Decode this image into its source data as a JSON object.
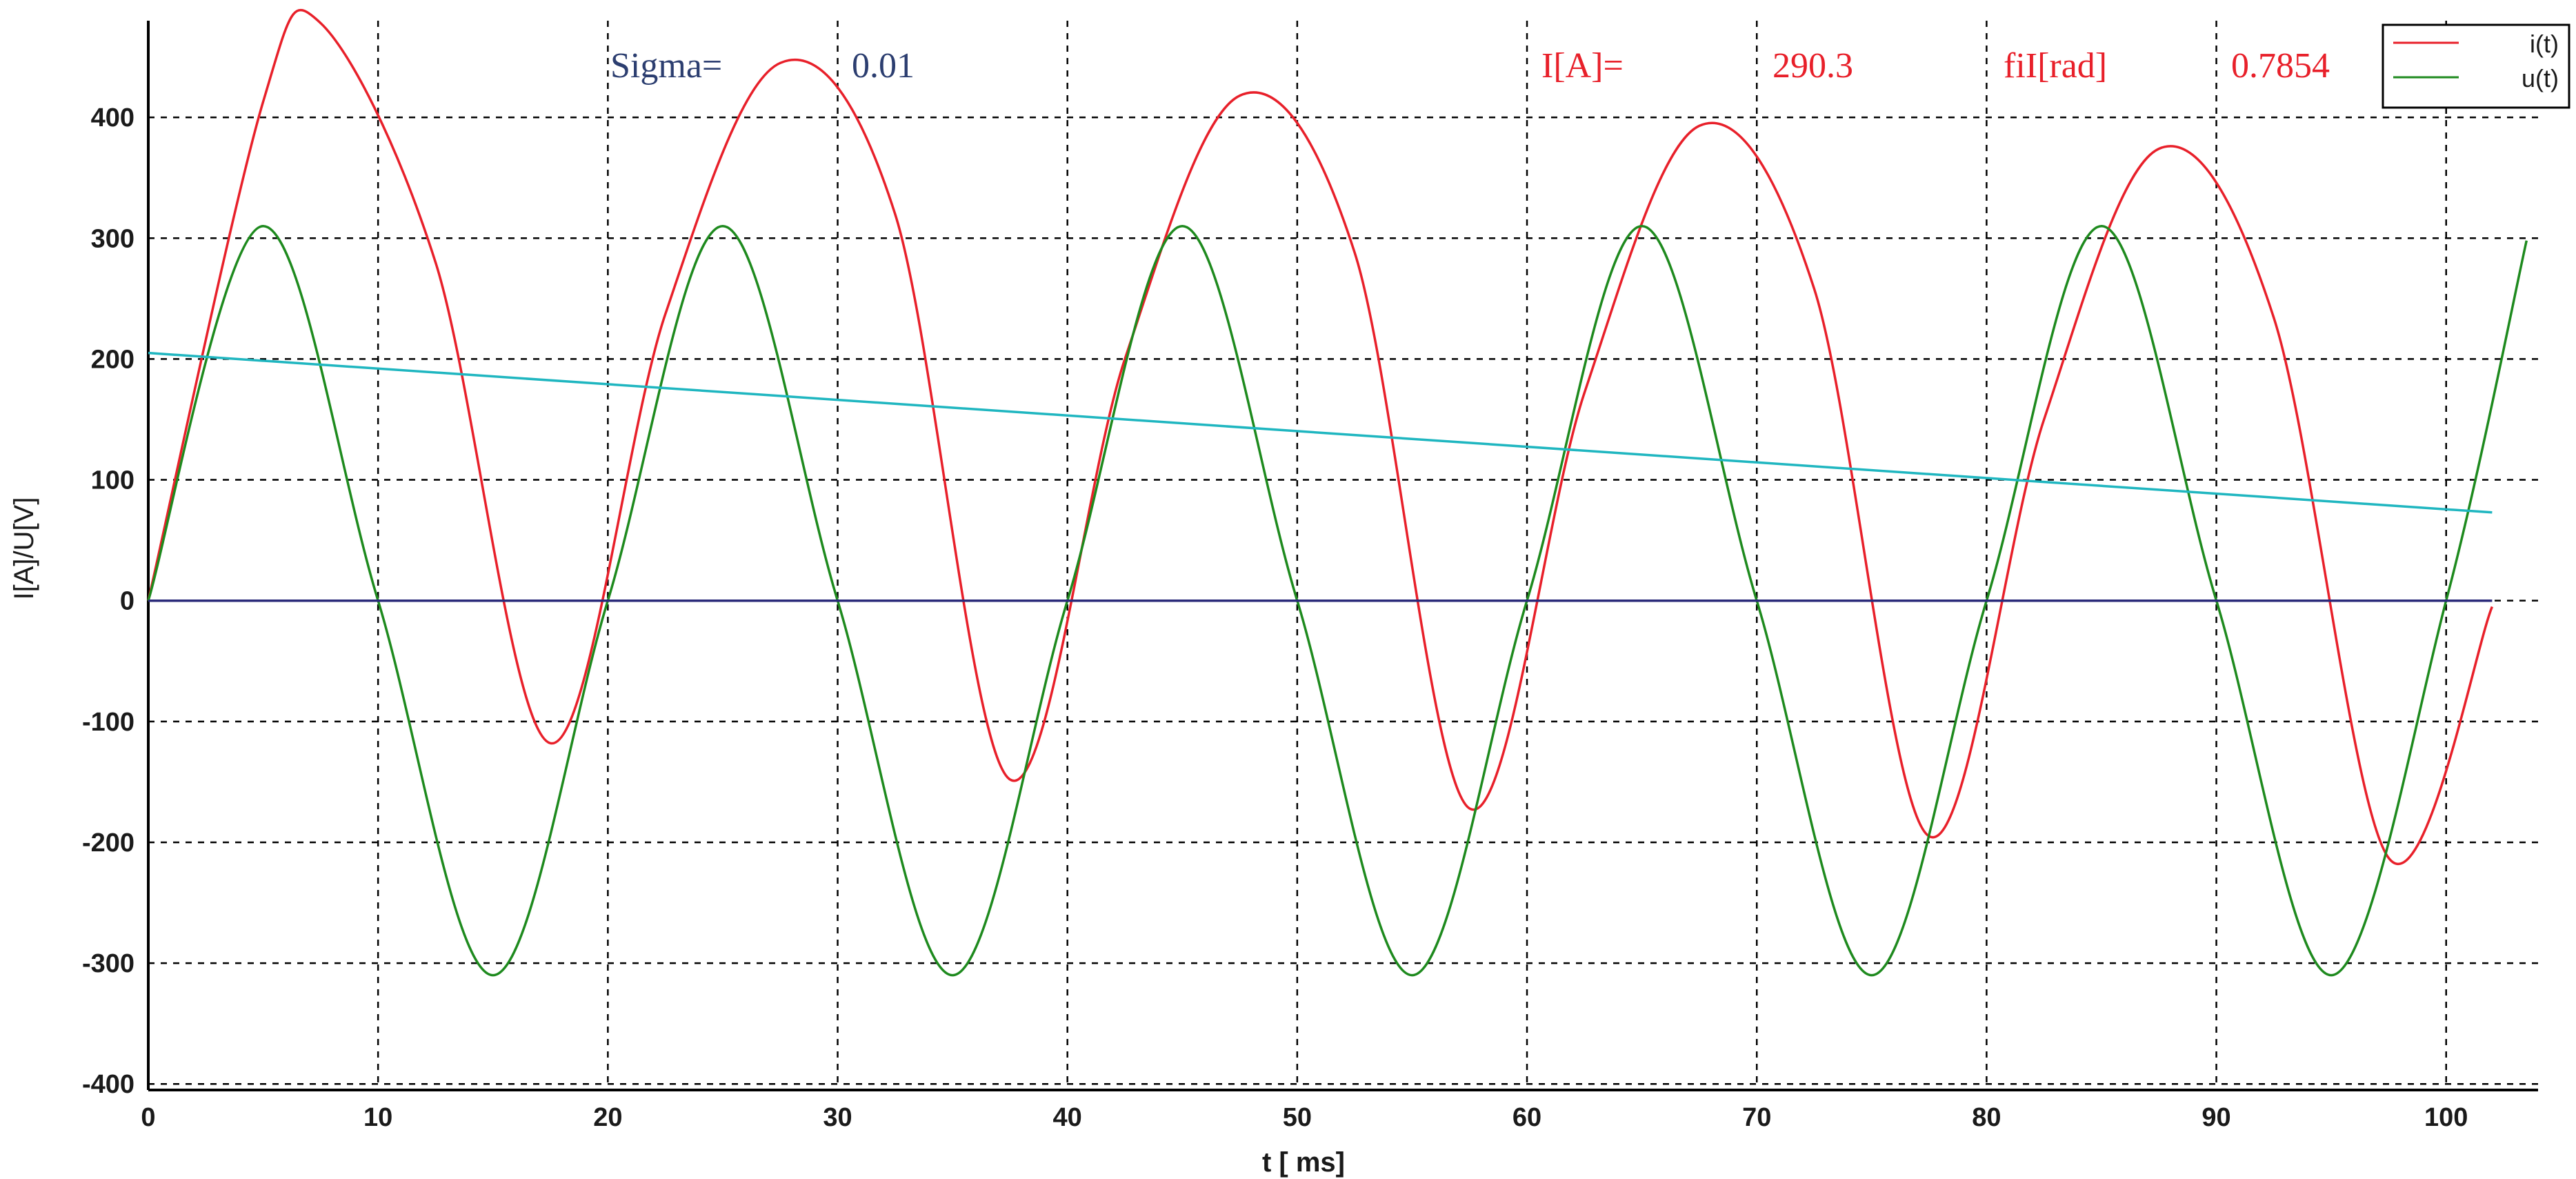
{
  "chart_data": {
    "type": "line",
    "xlabel": "t [ ms]",
    "ylabel": "I[A]/U[V]",
    "xlim": [
      0,
      104
    ],
    "ylim": [
      -405,
      480
    ],
    "x_ticks": [
      0,
      10,
      20,
      30,
      40,
      50,
      60,
      70,
      80,
      90,
      100
    ],
    "y_ticks": [
      -400,
      -300,
      -200,
      -100,
      0,
      100,
      200,
      300,
      400
    ],
    "grid": true,
    "legend_position": "top-right",
    "params": [
      {
        "label": "Sigma=",
        "value": "0.01",
        "color": "#2c3e70"
      },
      {
        "label": "I[A]=",
        "value": "290.3",
        "color": "#e8202a"
      },
      {
        "label": "fiI[rad]",
        "value": "0.7854",
        "color": "#e8202a"
      }
    ],
    "series": [
      {
        "name": "i(t)",
        "color": "#e8202a",
        "x": [
          0,
          5,
          7.5,
          12.5,
          17.5,
          22.5,
          27.5,
          32.5,
          37.5,
          42.5,
          47.5,
          52.5,
          57.5,
          62.5,
          67.5,
          72.5,
          77.5,
          82.5,
          87.5,
          92.5,
          97.5,
          102
        ],
        "values": [
          0,
          413,
          478,
          280,
          -118,
          237,
          445,
          320,
          -148,
          200,
          418,
          288,
          -172,
          172,
          393,
          258,
          -195,
          150,
          374,
          234,
          -213,
          -5
        ]
      },
      {
        "name": "u(t)",
        "color": "#1e8a1e",
        "x": [
          0,
          5,
          10,
          15,
          20,
          25,
          30,
          35,
          40,
          45,
          50,
          55,
          60,
          65,
          70,
          75,
          80,
          85,
          90,
          95,
          100,
          103.5
        ],
        "values": [
          0,
          310,
          0,
          -310,
          0,
          310,
          0,
          -310,
          0,
          310,
          0,
          -310,
          0,
          310,
          0,
          -310,
          0,
          310,
          0,
          -310,
          0,
          298
        ]
      },
      {
        "color": "#1fb6c0",
        "x": [
          0,
          102
        ],
        "values": [
          205,
          73
        ]
      },
      {
        "color": "#2a2a7a",
        "x": [
          0,
          102
        ],
        "values": [
          0,
          0
        ]
      }
    ]
  }
}
